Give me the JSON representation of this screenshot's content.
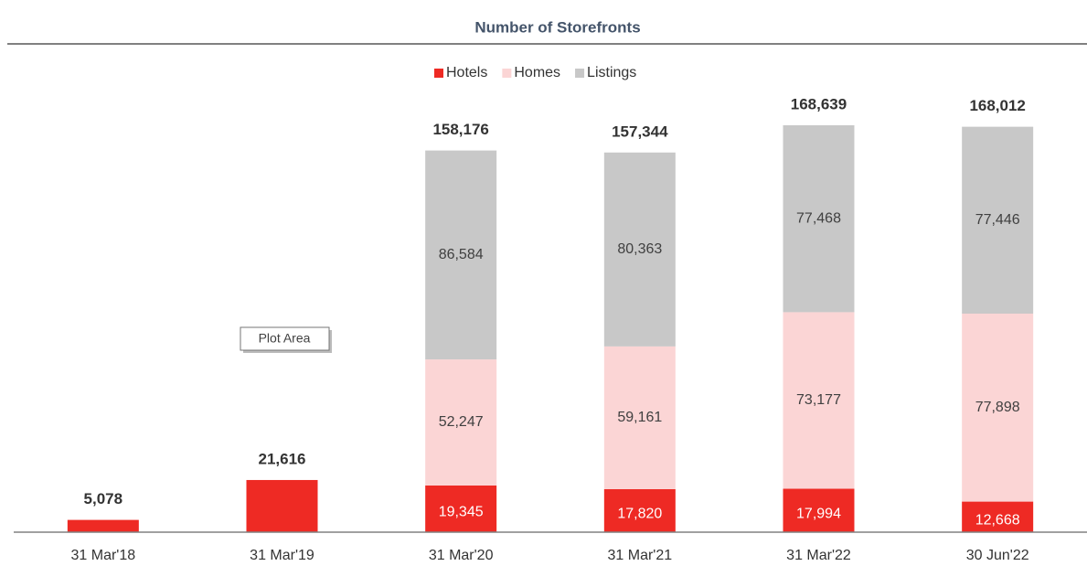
{
  "chart_data": {
    "type": "stacked_bar",
    "title": "Number of Storefronts",
    "tooltip": "Plot Area",
    "categories": [
      "31 Mar'18",
      "31 Mar'19",
      "31 Mar'20",
      "31 Mar'21",
      "31 Mar'22",
      "30 Jun'22"
    ],
    "series": [
      {
        "name": "Hotels",
        "color": "#ee2a24",
        "values": [
          5078,
          21616,
          19345,
          17820,
          17994,
          12668
        ],
        "value_labels": [
          null,
          null,
          "19,345",
          "17,820",
          "17,994",
          "12,668"
        ]
      },
      {
        "name": "Homes",
        "color": "#fbd5d5",
        "values": [
          null,
          null,
          52247,
          59161,
          73177,
          77898
        ],
        "value_labels": [
          null,
          null,
          "52,247",
          "59,161",
          "73,177",
          "77,898"
        ]
      },
      {
        "name": "Listings",
        "color": "#c8c8c8",
        "values": [
          null,
          null,
          86584,
          80363,
          77468,
          77446
        ],
        "value_labels": [
          null,
          null,
          "86,584",
          "80,363",
          "77,468",
          "77,446"
        ]
      }
    ],
    "totals": {
      "values": [
        5078,
        21616,
        158176,
        157344,
        168639,
        168012
      ],
      "value_labels": [
        "5,078",
        "21,616",
        "158,176",
        "157,344",
        "168,639",
        "168,012"
      ]
    },
    "ylim": [
      0,
      180000
    ],
    "legend": "top"
  }
}
